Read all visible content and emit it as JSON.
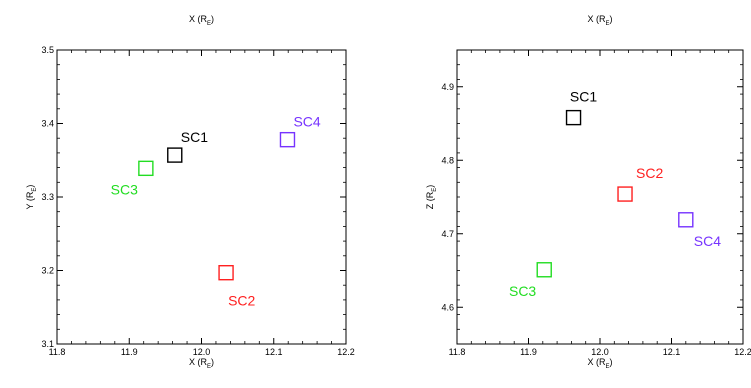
{
  "chart_data": [
    {
      "type": "scatter",
      "top_label": "X (R",
      "top_label_sub": "E",
      "xlabel": "X (R",
      "xlabel_sub": "E",
      "ylabel": "Y (R",
      "ylabel_sub": "E",
      "xlim": [
        11.8,
        12.2
      ],
      "ylim": [
        3.1,
        3.5
      ],
      "xticks": [
        11.8,
        11.9,
        12.0,
        12.1,
        12.2
      ],
      "xtick_labels": [
        "11.8",
        "11.9",
        "12.0",
        "12.1",
        "12.2"
      ],
      "yticks": [
        3.1,
        3.2,
        3.3,
        3.4,
        3.5
      ],
      "ytick_labels": [
        "3.1",
        "3.2",
        "3.3",
        "3.4",
        "3.5"
      ],
      "marker": "open-square",
      "points": [
        {
          "label": "SC1",
          "x": 11.963,
          "y": 3.357,
          "color": "#000000",
          "label_pos": "above-right"
        },
        {
          "label": "SC2",
          "x": 12.034,
          "y": 3.197,
          "color": "#ff2020",
          "label_pos": "below-right"
        },
        {
          "label": "SC3",
          "x": 11.923,
          "y": 3.339,
          "color": "#22dd22",
          "label_pos": "below-left"
        },
        {
          "label": "SC4",
          "x": 12.119,
          "y": 3.378,
          "color": "#7733ff",
          "label_pos": "above-right"
        }
      ]
    },
    {
      "type": "scatter",
      "top_label": "X (R",
      "top_label_sub": "E",
      "xlabel": "X (R",
      "xlabel_sub": "E",
      "ylabel": "Z (R",
      "ylabel_sub": "E",
      "xlim": [
        11.8,
        12.2
      ],
      "ylim": [
        4.55,
        4.95
      ],
      "xticks": [
        11.8,
        11.9,
        12.0,
        12.1,
        12.2
      ],
      "xtick_labels": [
        "11.8",
        "11.9",
        "12.0",
        "12.1",
        "12.2"
      ],
      "yticks": [
        4.6,
        4.7,
        4.8,
        4.9
      ],
      "ytick_labels": [
        "4.6",
        "4.7",
        "4.8",
        "4.9"
      ],
      "marker": "open-square",
      "points": [
        {
          "label": "SC1",
          "x": 11.963,
          "y": 4.858,
          "color": "#000000",
          "label_pos": "above"
        },
        {
          "label": "SC2",
          "x": 12.035,
          "y": 4.754,
          "color": "#ff2020",
          "label_pos": "above-right"
        },
        {
          "label": "SC3",
          "x": 11.922,
          "y": 4.651,
          "color": "#22dd22",
          "label_pos": "below-left"
        },
        {
          "label": "SC4",
          "x": 12.12,
          "y": 4.719,
          "color": "#7733ff",
          "label_pos": "below-right"
        }
      ]
    }
  ]
}
